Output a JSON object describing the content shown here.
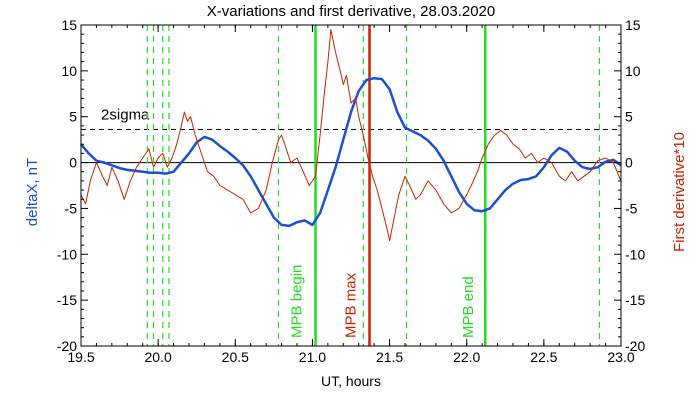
{
  "chart_data": {
    "type": "line",
    "title": "X-variations and first derivative, 28.03.2020",
    "xlabel": "UT, hours",
    "ylabel_left": "deltaX, nT",
    "ylabel_right": "First derivative*10",
    "xlim": [
      19.5,
      23.0
    ],
    "ylim": [
      -20,
      15
    ],
    "x_ticks": [
      19.5,
      20.0,
      20.5,
      21.0,
      21.5,
      22.0,
      22.5,
      23.0
    ],
    "x_tick_labels": [
      "19.5",
      "20.0",
      "20.5",
      "21.0",
      "21.5",
      "22.0",
      "22.5",
      "23.0"
    ],
    "y_ticks": [
      -20,
      -15,
      -10,
      -5,
      0,
      5,
      10,
      15
    ],
    "y_tick_labels": [
      "-20",
      "-15",
      "-10",
      "-5",
      "0",
      "5",
      "10",
      "15"
    ],
    "colors": {
      "deltax": "#1a4fd6",
      "derivative": "#cc2200",
      "mpb": "#22dd22",
      "max": "#cc2200"
    },
    "threshold": {
      "label": "2sigma",
      "value": 3.6
    },
    "zero_line": 0,
    "series": [
      {
        "key": "deltax",
        "values": [
          [
            19.5,
            2.0
          ],
          [
            19.55,
            1.0
          ],
          [
            19.6,
            0.2
          ],
          [
            19.65,
            0.0
          ],
          [
            19.7,
            -0.3
          ],
          [
            19.75,
            -0.6
          ],
          [
            19.8,
            -0.8
          ],
          [
            19.85,
            -0.9
          ],
          [
            19.9,
            -1.0
          ],
          [
            19.95,
            -1.1
          ],
          [
            20.0,
            -1.1
          ],
          [
            20.05,
            -1.2
          ],
          [
            20.1,
            -1.0
          ],
          [
            20.15,
            0.0
          ],
          [
            20.2,
            1.0
          ],
          [
            20.25,
            2.2
          ],
          [
            20.3,
            2.8
          ],
          [
            20.35,
            2.5
          ],
          [
            20.4,
            1.8
          ],
          [
            20.45,
            1.2
          ],
          [
            20.5,
            0.5
          ],
          [
            20.55,
            -0.3
          ],
          [
            20.6,
            -1.5
          ],
          [
            20.65,
            -3.0
          ],
          [
            20.7,
            -4.5
          ],
          [
            20.75,
            -6.0
          ],
          [
            20.8,
            -6.8
          ],
          [
            20.85,
            -6.9
          ],
          [
            20.9,
            -6.5
          ],
          [
            20.95,
            -6.3
          ],
          [
            21.0,
            -6.8
          ],
          [
            21.05,
            -5.5
          ],
          [
            21.1,
            -3.0
          ],
          [
            21.15,
            -0.5
          ],
          [
            21.2,
            2.5
          ],
          [
            21.25,
            5.5
          ],
          [
            21.3,
            7.8
          ],
          [
            21.35,
            9.0
          ],
          [
            21.4,
            9.2
          ],
          [
            21.45,
            9.1
          ],
          [
            21.5,
            8.0
          ],
          [
            21.55,
            5.5
          ],
          [
            21.6,
            3.8
          ],
          [
            21.65,
            3.4
          ],
          [
            21.7,
            3.0
          ],
          [
            21.75,
            2.4
          ],
          [
            21.8,
            1.5
          ],
          [
            21.85,
            0.2
          ],
          [
            21.9,
            -1.5
          ],
          [
            21.95,
            -3.2
          ],
          [
            22.0,
            -4.5
          ],
          [
            22.05,
            -5.2
          ],
          [
            22.1,
            -5.3
          ],
          [
            22.15,
            -5.0
          ],
          [
            22.2,
            -4.0
          ],
          [
            22.25,
            -3.0
          ],
          [
            22.3,
            -2.3
          ],
          [
            22.35,
            -1.9
          ],
          [
            22.4,
            -1.8
          ],
          [
            22.45,
            -1.5
          ],
          [
            22.5,
            -0.5
          ],
          [
            22.55,
            0.8
          ],
          [
            22.6,
            1.6
          ],
          [
            22.65,
            1.2
          ],
          [
            22.7,
            0.2
          ],
          [
            22.75,
            -0.5
          ],
          [
            22.8,
            -0.7
          ],
          [
            22.85,
            -0.5
          ],
          [
            22.9,
            0.1
          ],
          [
            22.95,
            0.3
          ],
          [
            23.0,
            -0.3
          ]
        ]
      },
      {
        "key": "derivative",
        "values": [
          [
            19.5,
            -3.5
          ],
          [
            19.53,
            -4.5
          ],
          [
            19.56,
            -2.0
          ],
          [
            19.6,
            0.0
          ],
          [
            19.64,
            -1.5
          ],
          [
            19.67,
            -2.5
          ],
          [
            19.7,
            -0.5
          ],
          [
            19.74,
            -2.0
          ],
          [
            19.78,
            -4.0
          ],
          [
            19.82,
            -2.0
          ],
          [
            19.86,
            -0.5
          ],
          [
            19.9,
            0.5
          ],
          [
            19.94,
            1.5
          ],
          [
            19.97,
            -0.5
          ],
          [
            20.0,
            0.5
          ],
          [
            20.03,
            1.0
          ],
          [
            20.06,
            -0.5
          ],
          [
            20.09,
            0.5
          ],
          [
            20.12,
            2.0
          ],
          [
            20.15,
            4.0
          ],
          [
            20.17,
            5.5
          ],
          [
            20.19,
            4.5
          ],
          [
            20.21,
            5.0
          ],
          [
            20.24,
            3.0
          ],
          [
            20.28,
            1.0
          ],
          [
            20.32,
            -1.0
          ],
          [
            20.36,
            -1.5
          ],
          [
            20.4,
            -2.5
          ],
          [
            20.45,
            -3.0
          ],
          [
            20.5,
            -3.5
          ],
          [
            20.55,
            -4.0
          ],
          [
            20.6,
            -5.5
          ],
          [
            20.65,
            -5.0
          ],
          [
            20.7,
            -3.0
          ],
          [
            20.74,
            0.0
          ],
          [
            20.78,
            2.5
          ],
          [
            20.8,
            3.0
          ],
          [
            20.83,
            1.5
          ],
          [
            20.86,
            0.0
          ],
          [
            20.9,
            0.5
          ],
          [
            20.94,
            -1.0
          ],
          [
            20.98,
            -2.5
          ],
          [
            21.02,
            -1.5
          ],
          [
            21.05,
            3.0
          ],
          [
            21.08,
            8.0
          ],
          [
            21.1,
            11.0
          ],
          [
            21.12,
            14.5
          ],
          [
            21.15,
            12.0
          ],
          [
            21.18,
            10.0
          ],
          [
            21.2,
            8.5
          ],
          [
            21.22,
            9.5
          ],
          [
            21.25,
            6.5
          ],
          [
            21.28,
            7.0
          ],
          [
            21.3,
            5.0
          ],
          [
            21.33,
            3.0
          ],
          [
            21.36,
            0.5
          ],
          [
            21.39,
            -1.5
          ],
          [
            21.42,
            -3.0
          ],
          [
            21.45,
            -5.0
          ],
          [
            21.48,
            -7.0
          ],
          [
            21.5,
            -8.5
          ],
          [
            21.53,
            -6.0
          ],
          [
            21.56,
            -3.5
          ],
          [
            21.6,
            -1.5
          ],
          [
            21.63,
            -2.5
          ],
          [
            21.67,
            -4.0
          ],
          [
            21.7,
            -3.5
          ],
          [
            21.75,
            -2.0
          ],
          [
            21.8,
            -3.0
          ],
          [
            21.85,
            -4.5
          ],
          [
            21.9,
            -5.5
          ],
          [
            21.95,
            -5.0
          ],
          [
            22.0,
            -3.5
          ],
          [
            22.03,
            -2.5
          ],
          [
            22.07,
            -1.0
          ],
          [
            22.1,
            0.5
          ],
          [
            22.14,
            2.0
          ],
          [
            22.18,
            3.0
          ],
          [
            22.22,
            3.5
          ],
          [
            22.26,
            3.0
          ],
          [
            22.3,
            2.0
          ],
          [
            22.34,
            1.5
          ],
          [
            22.38,
            0.5
          ],
          [
            22.42,
            1.0
          ],
          [
            22.46,
            0.0
          ],
          [
            22.5,
            0.5
          ],
          [
            22.55,
            0.0
          ],
          [
            22.6,
            -1.5
          ],
          [
            22.64,
            -2.0
          ],
          [
            22.68,
            -1.0
          ],
          [
            22.72,
            -2.0
          ],
          [
            22.76,
            -1.5
          ],
          [
            22.8,
            -1.0
          ],
          [
            22.85,
            0.2
          ],
          [
            22.9,
            0.5
          ],
          [
            22.95,
            0.0
          ],
          [
            23.0,
            -2.0
          ]
        ]
      }
    ],
    "vlines": [
      {
        "x": 19.93,
        "color": "mpb",
        "style": "dashed"
      },
      {
        "x": 19.97,
        "color": "mpb",
        "style": "dashed"
      },
      {
        "x": 20.03,
        "color": "mpb",
        "style": "dashed"
      },
      {
        "x": 20.07,
        "color": "mpb",
        "style": "dashed"
      },
      {
        "x": 20.78,
        "color": "mpb",
        "style": "dashed"
      },
      {
        "x": 21.02,
        "color": "mpb",
        "style": "solid"
      },
      {
        "x": 21.33,
        "color": "mpb",
        "style": "dashed"
      },
      {
        "x": 21.37,
        "color": "max",
        "style": "solid"
      },
      {
        "x": 21.61,
        "color": "mpb",
        "style": "dashed"
      },
      {
        "x": 22.12,
        "color": "mpb",
        "style": "solid"
      },
      {
        "x": 22.86,
        "color": "mpb",
        "style": "dashed"
      }
    ],
    "annotations": [
      {
        "text": "MPB begin",
        "x": 20.93,
        "color": "mpb"
      },
      {
        "text": "MPB max",
        "x": 21.28,
        "color": "max"
      },
      {
        "text": "MPB end",
        "x": 22.04,
        "color": "mpb"
      }
    ]
  }
}
